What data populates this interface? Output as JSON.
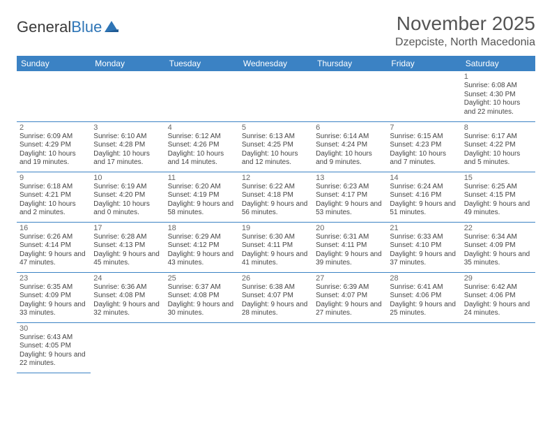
{
  "logo": {
    "text1": "General",
    "text2": "Blue"
  },
  "title": "November 2025",
  "location": "Dzepciste, North Macedonia",
  "colors": {
    "header_bg": "#3b82c4",
    "header_text": "#ffffff",
    "border": "#3b82c4",
    "logo_blue": "#2e75b6",
    "text": "#444444"
  },
  "days": [
    "Sunday",
    "Monday",
    "Tuesday",
    "Wednesday",
    "Thursday",
    "Friday",
    "Saturday"
  ],
  "weeks": [
    [
      null,
      null,
      null,
      null,
      null,
      null,
      {
        "n": "1",
        "sr": "6:08 AM",
        "ss": "4:30 PM",
        "dl": "10 hours and 22 minutes."
      }
    ],
    [
      {
        "n": "2",
        "sr": "6:09 AM",
        "ss": "4:29 PM",
        "dl": "10 hours and 19 minutes."
      },
      {
        "n": "3",
        "sr": "6:10 AM",
        "ss": "4:28 PM",
        "dl": "10 hours and 17 minutes."
      },
      {
        "n": "4",
        "sr": "6:12 AM",
        "ss": "4:26 PM",
        "dl": "10 hours and 14 minutes."
      },
      {
        "n": "5",
        "sr": "6:13 AM",
        "ss": "4:25 PM",
        "dl": "10 hours and 12 minutes."
      },
      {
        "n": "6",
        "sr": "6:14 AM",
        "ss": "4:24 PM",
        "dl": "10 hours and 9 minutes."
      },
      {
        "n": "7",
        "sr": "6:15 AM",
        "ss": "4:23 PM",
        "dl": "10 hours and 7 minutes."
      },
      {
        "n": "8",
        "sr": "6:17 AM",
        "ss": "4:22 PM",
        "dl": "10 hours and 5 minutes."
      }
    ],
    [
      {
        "n": "9",
        "sr": "6:18 AM",
        "ss": "4:21 PM",
        "dl": "10 hours and 2 minutes."
      },
      {
        "n": "10",
        "sr": "6:19 AM",
        "ss": "4:20 PM",
        "dl": "10 hours and 0 minutes."
      },
      {
        "n": "11",
        "sr": "6:20 AM",
        "ss": "4:19 PM",
        "dl": "9 hours and 58 minutes."
      },
      {
        "n": "12",
        "sr": "6:22 AM",
        "ss": "4:18 PM",
        "dl": "9 hours and 56 minutes."
      },
      {
        "n": "13",
        "sr": "6:23 AM",
        "ss": "4:17 PM",
        "dl": "9 hours and 53 minutes."
      },
      {
        "n": "14",
        "sr": "6:24 AM",
        "ss": "4:16 PM",
        "dl": "9 hours and 51 minutes."
      },
      {
        "n": "15",
        "sr": "6:25 AM",
        "ss": "4:15 PM",
        "dl": "9 hours and 49 minutes."
      }
    ],
    [
      {
        "n": "16",
        "sr": "6:26 AM",
        "ss": "4:14 PM",
        "dl": "9 hours and 47 minutes."
      },
      {
        "n": "17",
        "sr": "6:28 AM",
        "ss": "4:13 PM",
        "dl": "9 hours and 45 minutes."
      },
      {
        "n": "18",
        "sr": "6:29 AM",
        "ss": "4:12 PM",
        "dl": "9 hours and 43 minutes."
      },
      {
        "n": "19",
        "sr": "6:30 AM",
        "ss": "4:11 PM",
        "dl": "9 hours and 41 minutes."
      },
      {
        "n": "20",
        "sr": "6:31 AM",
        "ss": "4:11 PM",
        "dl": "9 hours and 39 minutes."
      },
      {
        "n": "21",
        "sr": "6:33 AM",
        "ss": "4:10 PM",
        "dl": "9 hours and 37 minutes."
      },
      {
        "n": "22",
        "sr": "6:34 AM",
        "ss": "4:09 PM",
        "dl": "9 hours and 35 minutes."
      }
    ],
    [
      {
        "n": "23",
        "sr": "6:35 AM",
        "ss": "4:09 PM",
        "dl": "9 hours and 33 minutes."
      },
      {
        "n": "24",
        "sr": "6:36 AM",
        "ss": "4:08 PM",
        "dl": "9 hours and 32 minutes."
      },
      {
        "n": "25",
        "sr": "6:37 AM",
        "ss": "4:08 PM",
        "dl": "9 hours and 30 minutes."
      },
      {
        "n": "26",
        "sr": "6:38 AM",
        "ss": "4:07 PM",
        "dl": "9 hours and 28 minutes."
      },
      {
        "n": "27",
        "sr": "6:39 AM",
        "ss": "4:07 PM",
        "dl": "9 hours and 27 minutes."
      },
      {
        "n": "28",
        "sr": "6:41 AM",
        "ss": "4:06 PM",
        "dl": "9 hours and 25 minutes."
      },
      {
        "n": "29",
        "sr": "6:42 AM",
        "ss": "4:06 PM",
        "dl": "9 hours and 24 minutes."
      }
    ],
    [
      {
        "n": "30",
        "sr": "6:43 AM",
        "ss": "4:05 PM",
        "dl": "9 hours and 22 minutes."
      },
      null,
      null,
      null,
      null,
      null,
      null
    ]
  ],
  "labels": {
    "sunrise": "Sunrise: ",
    "sunset": "Sunset: ",
    "daylight": "Daylight: "
  }
}
